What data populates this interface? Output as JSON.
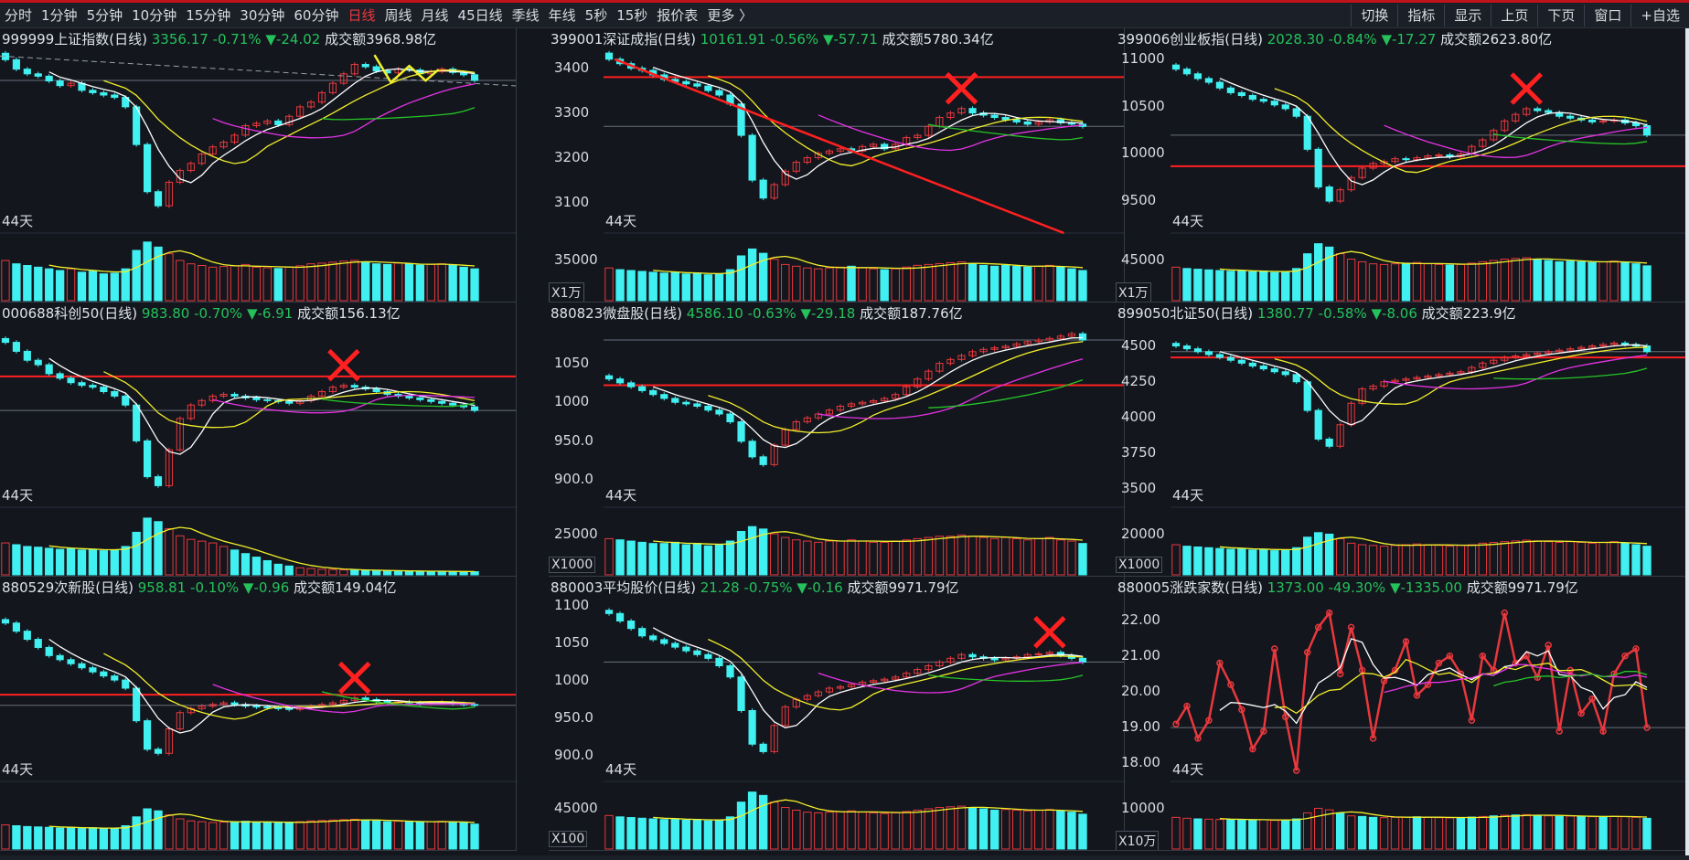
{
  "toolbar": {
    "periods": [
      "分时",
      "1分钟",
      "5分钟",
      "10分钟",
      "15分钟",
      "30分钟",
      "60分钟",
      "日线",
      "周线",
      "月线",
      "45日线",
      "季线",
      "年线",
      "5秒",
      "15秒",
      "报价表",
      "更多 〉"
    ],
    "active_period": "日线",
    "right_buttons": [
      "切换",
      "指标",
      "显示",
      "上页",
      "下页",
      "窗口",
      "+自选"
    ]
  },
  "colors": {
    "up": "#e8383d",
    "down": "#41f0f0",
    "ma5": "#ffffff",
    "ma10": "#f2ef2a",
    "ma20": "#e533e5",
    "ma60": "#27c527",
    "vol_ma": "#f2ef2a",
    "resistance": "#ff2020",
    "background": "#13161d",
    "grid": "#363b46"
  },
  "panels": [
    {
      "code": "999999",
      "name": "上证指数(日线)",
      "price": "3356.17",
      "pct": "-0.71%",
      "change": "▼-24.02",
      "amount_label": "成交额",
      "amount": "3968.98亿",
      "days_label": "44天",
      "unit": "",
      "vol_label": "",
      "chart_data": {
        "type": "candlestick",
        "y_ticks": [],
        "ylim": [
          3040,
          3420
        ],
        "vol_max": 180,
        "closes": [
          3400,
          3380,
          3370,
          3365,
          3355,
          3345,
          3350,
          3335,
          3330,
          3325,
          3320,
          3300,
          3220,
          3120,
          3090,
          3140,
          3165,
          3180,
          3200,
          3215,
          3225,
          3240,
          3260,
          3265,
          3270,
          3262,
          3280,
          3300,
          3310,
          3330,
          3350,
          3370,
          3390,
          3385,
          3376,
          3372,
          3380,
          3378,
          3370,
          3375,
          3380,
          3373,
          3368,
          3356
        ],
        "volumes": [
          120,
          110,
          105,
          100,
          95,
          90,
          95,
          85,
          88,
          80,
          82,
          95,
          150,
          175,
          160,
          140,
          120,
          110,
          105,
          100,
          102,
          104,
          108,
          100,
          98,
          96,
          100,
          104,
          110,
          112,
          115,
          118,
          120,
          116,
          110,
          108,
          112,
          110,
          106,
          108,
          110,
          105,
          100,
          95
        ],
        "annotations": [
          "下降虚线",
          "黄色折线",
          "箭头"
        ]
      }
    },
    {
      "code": "399001",
      "name": "深证成指(日线)",
      "price": "10161.91",
      "pct": "-0.56%",
      "change": "▼-57.71",
      "amount_label": "成交额",
      "amount": "5780.34亿",
      "days_label": "44天",
      "unit": "X1万",
      "vol_label": "35000",
      "chart_data": {
        "type": "candlestick",
        "y_ticks": [
          3400,
          3300,
          3200,
          3100
        ],
        "ylim": [
          3040,
          3440
        ],
        "vol_max": 70000,
        "closes": [
          3420,
          3410,
          3400,
          3395,
          3385,
          3375,
          3370,
          3365,
          3360,
          3350,
          3340,
          3320,
          3250,
          3150,
          3110,
          3140,
          3170,
          3190,
          3200,
          3210,
          3215,
          3220,
          3215,
          3225,
          3230,
          3220,
          3230,
          3245,
          3250,
          3270,
          3290,
          3300,
          3310,
          3300,
          3295,
          3290,
          3285,
          3280,
          3275,
          3280,
          3285,
          3278,
          3275,
          3270
        ],
        "volumes": [
          38000,
          36000,
          35000,
          34000,
          33000,
          32000,
          33000,
          31000,
          32000,
          30000,
          31000,
          36000,
          52000,
          60000,
          55000,
          48000,
          42000,
          40000,
          38000,
          37000,
          38000,
          39000,
          40000,
          38000,
          37000,
          36000,
          37000,
          39000,
          41000,
          42000,
          43000,
          44000,
          45000,
          43000,
          41000,
          40000,
          41000,
          40000,
          39000,
          40000,
          41000,
          39000,
          37000,
          35000
        ],
        "resistance": 3380,
        "annotations": [
          "红色下降趋势线",
          "红叉"
        ]
      }
    },
    {
      "code": "399006",
      "name": "创业板指(日线)",
      "price": "2028.30",
      "pct": "-0.84%",
      "change": "▼-17.27",
      "amount_label": "成交额",
      "amount": "2623.80亿",
      "days_label": "44天",
      "unit": "X1万",
      "vol_label": "45000",
      "chart_data": {
        "type": "candlestick",
        "y_ticks": [
          11000,
          10500,
          10000,
          9500
        ],
        "ylim": [
          9200,
          11100
        ],
        "vol_max": 90000,
        "closes": [
          10900,
          10850,
          10800,
          10760,
          10700,
          10650,
          10620,
          10580,
          10560,
          10520,
          10480,
          10400,
          10050,
          9650,
          9500,
          9620,
          9750,
          9850,
          9900,
          9920,
          9950,
          9940,
          9960,
          9980,
          9990,
          9970,
          10000,
          10080,
          10150,
          10250,
          10350,
          10420,
          10480,
          10460,
          10440,
          10400,
          10380,
          10360,
          10340,
          10350,
          10360,
          10330,
          10300,
          10200
        ],
        "volumes": [
          50000,
          48000,
          47000,
          46000,
          45000,
          44000,
          45000,
          43000,
          44000,
          42000,
          43000,
          48000,
          70000,
          85000,
          80000,
          70000,
          62000,
          58000,
          55000,
          54000,
          55000,
          56000,
          57000,
          55000,
          54000,
          53000,
          54000,
          56000,
          58000,
          60000,
          62000,
          63000,
          64000,
          62000,
          60000,
          58000,
          59000,
          58000,
          57000,
          58000,
          59000,
          57000,
          55000,
          52000
        ],
        "resistance": 9870,
        "annotations": [
          "红叉"
        ]
      }
    },
    {
      "code": "000688",
      "name": "科创50(日线)",
      "price": "983.80",
      "pct": "-0.70%",
      "change": "▼-6.91",
      "amount_label": "成交额",
      "amount": "156.13亿",
      "days_label": "44天",
      "unit": "",
      "vol_label": "",
      "chart_data": {
        "type": "candlestick",
        "y_ticks": [],
        "ylim": [
          880,
          1080
        ],
        "vol_max": 170,
        "closes": [
          1060,
          1050,
          1040,
          1035,
          1025,
          1020,
          1015,
          1012,
          1010,
          1005,
          1000,
          990,
          950,
          910,
          900,
          940,
          975,
          990,
          995,
          1000,
          1002,
          1000,
          998,
          996,
          995,
          994,
          992,
          995,
          1000,
          1005,
          1010,
          1012,
          1010,
          1008,
          1005,
          1002,
          1000,
          998,
          996,
          994,
          992,
          990,
          988,
          984
        ],
        "volumes": [
          90,
          85,
          80,
          78,
          75,
          72,
          74,
          70,
          72,
          68,
          70,
          80,
          120,
          160,
          150,
          130,
          110,
          100,
          95,
          90,
          80,
          70,
          60,
          50,
          40,
          30,
          25,
          20,
          18,
          16,
          15,
          14,
          13,
          12,
          12,
          11,
          11,
          10,
          10,
          10,
          10,
          9,
          9,
          9
        ],
        "resistance": 1022,
        "annotations": [
          "红叉"
        ]
      }
    },
    {
      "code": "880823",
      "name": "微盘股(日线)",
      "price": "4586.10",
      "pct": "-0.63%",
      "change": "▼-29.18",
      "amount_label": "成交额",
      "amount": "187.76亿",
      "days_label": "44天",
      "unit": "X1000",
      "vol_label": "25000",
      "chart_data": {
        "type": "candlestick",
        "y_ticks": [
          "1050",
          "1000",
          "950.0",
          "900.0"
        ],
        "ylim": [
          870,
          1100
        ],
        "vol_max": 50000,
        "closes": [
          1030,
          1025,
          1020,
          1015,
          1010,
          1005,
          1000,
          998,
          995,
          990,
          985,
          975,
          950,
          930,
          920,
          945,
          965,
          975,
          980,
          985,
          990,
          995,
          998,
          1000,
          1002,
          1005,
          1010,
          1020,
          1030,
          1040,
          1050,
          1055,
          1060,
          1065,
          1068,
          1070,
          1072,
          1075,
          1078,
          1080,
          1082,
          1085,
          1088,
          1080
        ],
        "volumes": [
          30000,
          29000,
          28000,
          27000,
          26000,
          26000,
          27000,
          25000,
          26000,
          24000,
          25000,
          28000,
          36000,
          40000,
          38000,
          34000,
          31000,
          29000,
          28000,
          27000,
          28000,
          28000,
          29000,
          28000,
          27000,
          27000,
          28000,
          29000,
          30000,
          31000,
          32000,
          32000,
          33000,
          32000,
          31000,
          30000,
          31000,
          30000,
          29000,
          30000,
          31000,
          29000,
          28000,
          26000
        ],
        "resistance": 1022
      }
    },
    {
      "code": "899050",
      "name": "北证50(日线)",
      "price": "1380.77",
      "pct": "-0.58%",
      "change": "▼-8.06",
      "amount_label": "成交额",
      "amount": "223.9亿",
      "days_label": "44天",
      "unit": "X1000",
      "vol_label": "20000",
      "chart_data": {
        "type": "candlestick",
        "y_ticks": [
          4500,
          4250,
          4000,
          3750,
          3500
        ],
        "ylim": [
          3400,
          4650
        ],
        "vol_max": 40000,
        "closes": [
          4500,
          4480,
          4460,
          4440,
          4420,
          4400,
          4380,
          4360,
          4340,
          4320,
          4300,
          4250,
          4050,
          3850,
          3800,
          3950,
          4100,
          4200,
          4220,
          4250,
          4260,
          4270,
          4280,
          4290,
          4300,
          4310,
          4320,
          4350,
          4380,
          4400,
          4420,
          4430,
          4440,
          4450,
          4460,
          4470,
          4480,
          4490,
          4500,
          4510,
          4520,
          4510,
          4500,
          4460
        ],
        "volumes": [
          20000,
          19000,
          18500,
          18000,
          17500,
          17000,
          17500,
          16500,
          17000,
          16000,
          16500,
          18000,
          25000,
          28000,
          27000,
          24000,
          21000,
          20000,
          19500,
          19000,
          19500,
          20000,
          20500,
          20000,
          19500,
          19000,
          19500,
          20000,
          21000,
          21500,
          22000,
          22500,
          23000,
          22500,
          22000,
          21500,
          22000,
          21500,
          21000,
          21500,
          22000,
          21000,
          20000,
          19000
        ],
        "resistance": 4420
      }
    },
    {
      "code": "880529",
      "name": "次新股(日线)",
      "price": "958.81",
      "pct": "-0.10%",
      "change": "▼-0.96",
      "amount_label": "成交额",
      "amount": "149.04亿",
      "days_label": "44天",
      "unit": "",
      "vol_label": "",
      "chart_data": {
        "type": "candlestick",
        "y_ticks": [],
        "ylim": [
          870,
          1090
        ],
        "vol_max": 150,
        "closes": [
          1060,
          1050,
          1040,
          1030,
          1020,
          1015,
          1010,
          1005,
          1000,
          995,
          990,
          980,
          940,
          905,
          900,
          930,
          950,
          955,
          958,
          960,
          962,
          960,
          958,
          957,
          956,
          955,
          954,
          956,
          958,
          960,
          962,
          965,
          968,
          966,
          964,
          962,
          963,
          962,
          961,
          962,
          963,
          961,
          960,
          959
        ],
        "volumes": [
          60,
          58,
          56,
          55,
          54,
          52,
          54,
          51,
          53,
          50,
          52,
          58,
          80,
          100,
          95,
          85,
          75,
          70,
          68,
          66,
          67,
          68,
          69,
          67,
          66,
          65,
          66,
          68,
          70,
          71,
          72,
          73,
          74,
          72,
          70,
          68,
          69,
          68,
          67,
          68,
          69,
          67,
          65,
          62
        ],
        "resistance": 972,
        "annotations": [
          "红叉"
        ]
      }
    },
    {
      "code": "880003",
      "name": "平均股价(日线)",
      "price": "21.28",
      "pct": "-0.75%",
      "change": "▼-0.16",
      "amount_label": "成交额",
      "amount": "9971.79亿",
      "days_label": "44天",
      "unit": "X100",
      "vol_label": "45000",
      "chart_data": {
        "type": "candlestick",
        "y_ticks": [
          "1100",
          "1050",
          "1000",
          "950.0",
          "900.0"
        ],
        "ylim": [
          870,
          1110
        ],
        "vol_max": 90000,
        "closes": [
          1090,
          1080,
          1070,
          1060,
          1055,
          1050,
          1045,
          1040,
          1035,
          1030,
          1020,
          1005,
          960,
          915,
          905,
          940,
          965,
          975,
          980,
          985,
          990,
          992,
          995,
          998,
          1000,
          1002,
          1005,
          1010,
          1015,
          1020,
          1025,
          1030,
          1035,
          1032,
          1030,
          1028,
          1030,
          1032,
          1035,
          1036,
          1038,
          1034,
          1030,
          1025
        ],
        "volumes": [
          50000,
          48000,
          47000,
          46000,
          45000,
          44000,
          45000,
          43000,
          44000,
          42000,
          43000,
          48000,
          70000,
          85000,
          80000,
          70000,
          62000,
          58000,
          55000,
          54000,
          55000,
          56000,
          57000,
          55000,
          54000,
          53000,
          54000,
          56000,
          58000,
          60000,
          62000,
          63000,
          64000,
          62000,
          60000,
          58000,
          59000,
          58000,
          57000,
          58000,
          59000,
          57000,
          55000,
          52000
        ],
        "annotations": [
          "红叉"
        ]
      }
    },
    {
      "code": "880005",
      "name": "涨跌家数(日线)",
      "price": "1373.00",
      "pct": "-49.30%",
      "change": "▼-1335.00",
      "amount_label": "成交额",
      "amount": "9971.79亿",
      "days_label": "44天",
      "unit": "X10万",
      "vol_label": "10000",
      "chart_data": {
        "type": "line",
        "y_ticks": [
          "22.00",
          "21.00",
          "20.00",
          "19.00",
          "18.00"
        ],
        "ylim": [
          17.6,
          22.6
        ],
        "vol_max": 20000,
        "values": [
          19.1,
          19.6,
          18.7,
          19.2,
          20.8,
          20.2,
          19.5,
          18.4,
          18.9,
          21.2,
          19.3,
          17.8,
          21.1,
          21.8,
          22.2,
          20.5,
          21.8,
          20.6,
          18.7,
          20.3,
          20.6,
          21.4,
          19.9,
          20.2,
          20.8,
          21.0,
          20.5,
          19.2,
          21.0,
          20.6,
          22.2,
          20.8,
          21.0,
          20.4,
          21.3,
          18.9,
          20.6,
          19.4,
          19.8,
          18.9,
          20.5,
          21.0,
          21.2,
          19.0
        ],
        "volumes": [
          10500,
          10200,
          10000,
          9900,
          9800,
          9700,
          9800,
          9600,
          9700,
          9500,
          9600,
          10000,
          12000,
          13500,
          13000,
          12000,
          11000,
          10800,
          10500,
          10400,
          10500,
          10600,
          10700,
          10500,
          10400,
          10300,
          10400,
          10600,
          10800,
          11000,
          11200,
          11300,
          11400,
          11200,
          11000,
          10800,
          10900,
          10800,
          10700,
          10800,
          10900,
          10700,
          10500,
          10200
        ]
      }
    }
  ]
}
